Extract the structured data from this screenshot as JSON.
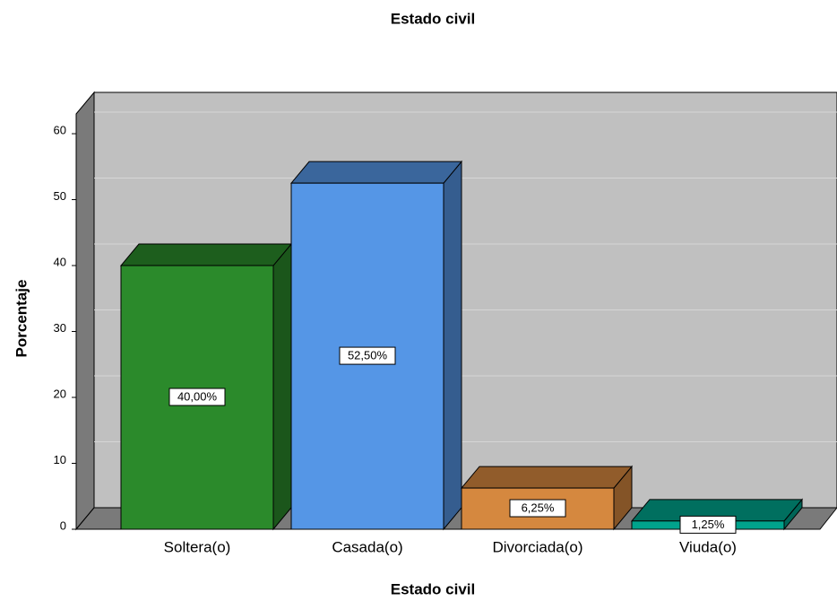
{
  "chart_data": {
    "type": "bar",
    "title": "Estado civil",
    "x_label": "Estado civil",
    "y_label": "Porcentaje",
    "categories": [
      "Soltera(o)",
      "Casada(o)",
      "Divorciada(o)",
      "Viuda(o)"
    ],
    "values": [
      40,
      52.5,
      6.25,
      1.25
    ],
    "value_labels": [
      "40,00%",
      "52,50%",
      "6,25%",
      "1,25%"
    ],
    "colors": [
      "#2b8a2b",
      "#5596e6",
      "#d5883f",
      "#00a38c"
    ],
    "ylim": [
      0,
      63
    ],
    "yticks": [
      0,
      10,
      20,
      30,
      40,
      50,
      60
    ],
    "grid": true
  }
}
